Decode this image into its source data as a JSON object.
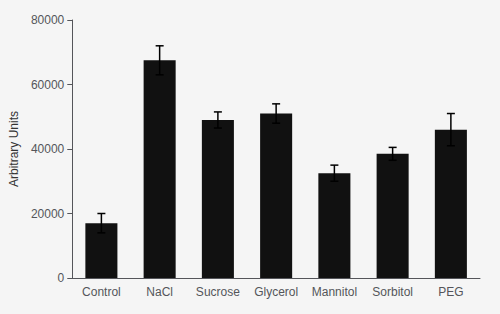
{
  "chart_data": {
    "type": "bar",
    "categories": [
      "Control",
      "NaCl",
      "Sucrose",
      "Glycerol",
      "Mannitol",
      "Sorbitol",
      "PEG"
    ],
    "values": [
      17000,
      67500,
      49000,
      51000,
      32500,
      38500,
      46000
    ],
    "errors": [
      3000,
      4500,
      2500,
      3000,
      2500,
      2000,
      5000
    ],
    "color": "#111111",
    "ylabel": "Arbitrary Units",
    "ylim": [
      0,
      80000
    ],
    "yticks": [
      0,
      20000,
      40000,
      60000,
      80000
    ],
    "grid": false
  }
}
